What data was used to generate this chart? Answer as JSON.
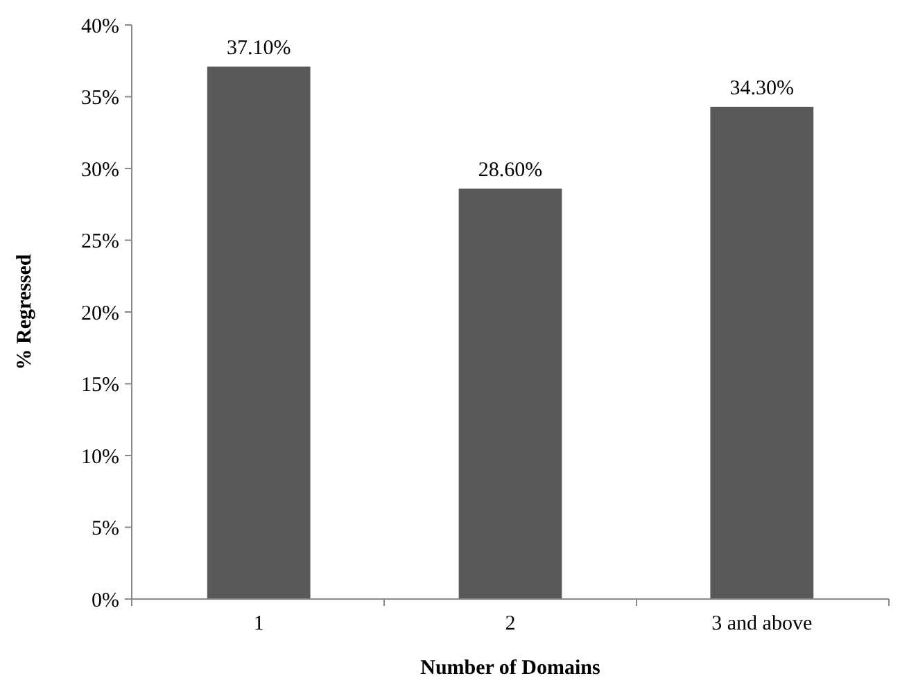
{
  "chart_data": {
    "type": "bar",
    "xlabel": "Number of Domains",
    "ylabel": "% Regressed",
    "categories": [
      "1",
      "2",
      "3 and above"
    ],
    "values": [
      37.1,
      28.6,
      34.3
    ],
    "value_labels": [
      "37.10%",
      "28.60%",
      "34.30%"
    ],
    "color": "#595959",
    "ylim": [
      0,
      40
    ],
    "yticks": [
      {
        "value": 0,
        "label": "0%"
      },
      {
        "value": 5,
        "label": "5%"
      },
      {
        "value": 10,
        "label": "10%"
      },
      {
        "value": 15,
        "label": "15%"
      },
      {
        "value": 20,
        "label": "20%"
      },
      {
        "value": 25,
        "label": "25%"
      },
      {
        "value": 30,
        "label": "30%"
      },
      {
        "value": 35,
        "label": "35%"
      },
      {
        "value": 40,
        "label": "40%"
      }
    ],
    "grid": false
  }
}
